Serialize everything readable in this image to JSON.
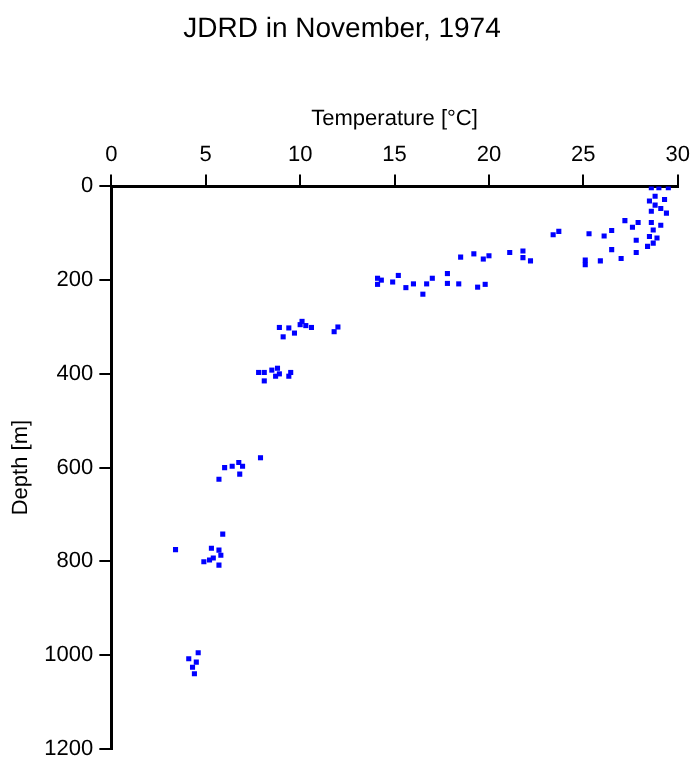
{
  "chart_data": {
    "type": "scatter",
    "title": "JDRD in November, 1974",
    "xlabel": "Temperature [°C]",
    "ylabel": "Depth [m]",
    "xlim": [
      0,
      30
    ],
    "xticks": [
      0,
      5,
      10,
      15,
      20,
      25,
      30
    ],
    "ylim": [
      1200,
      0
    ],
    "yticks": [
      0,
      200,
      400,
      600,
      800,
      1000,
      1200
    ],
    "grid": false,
    "legend": false,
    "marker": "square",
    "series": [
      {
        "color": "#0000ff",
        "x": [
          29.0,
          29.5,
          28.6,
          28.8,
          29.3,
          28.5,
          28.8,
          29.1,
          28.6,
          29.4,
          27.9,
          28.6,
          29.1,
          28.7,
          28.5,
          28.9,
          28.7,
          23.7,
          23.4,
          25.3,
          26.1,
          26.5,
          27.2,
          27.6,
          27.8,
          27.8,
          28.4,
          26.5,
          27.0,
          25.9,
          25.1,
          25.1,
          22.2,
          21.8,
          21.8,
          21.1,
          20.0,
          19.7,
          19.2,
          18.5,
          19.8,
          19.4,
          18.4,
          17.8,
          17.8,
          17.0,
          16.7,
          16.5,
          16.0,
          15.6,
          15.2,
          14.9,
          14.3,
          14.1,
          14.1,
          10.1,
          10.0,
          10.3,
          10.6,
          8.9,
          9.4,
          9.7,
          9.1,
          12.0,
          11.8,
          7.8,
          8.1,
          8.5,
          8.8,
          8.9,
          9.5,
          8.1,
          9.4,
          8.7,
          6.75,
          6.4,
          6.95,
          6.0,
          7.9,
          6.8,
          5.7,
          5.9,
          3.4,
          5.3,
          5.7,
          4.9,
          5.2,
          5.4,
          5.8,
          5.7,
          4.6,
          4.1,
          4.5,
          4.3,
          4.4
        ],
        "values": [
          3,
          3,
          3,
          21,
          28,
          31,
          40,
          47,
          53,
          57,
          77,
          77,
          83,
          93,
          107,
          110,
          121,
          96,
          103,
          101,
          106,
          94,
          73,
          87,
          115,
          141,
          128,
          135,
          154,
          159,
          157,
          167,
          159,
          152,
          138,
          141,
          148,
          155,
          144,
          151,
          209,
          215,
          208,
          207,
          186,
          196,
          208,
          230,
          208,
          216,
          190,
          204,
          200,
          209,
          196,
          288,
          295,
          297,
          301,
          301,
          302,
          313,
          321,
          300,
          310,
          397,
          397,
          392,
          388,
          400,
          397,
          415,
          405,
          405,
          589,
          597,
          597,
          600,
          579,
          614,
          625,
          742,
          775,
          772,
          776,
          801,
          797,
          793,
          787,
          808,
          995,
          1008,
          1015,
          1026,
          1040
        ]
      }
    ]
  }
}
